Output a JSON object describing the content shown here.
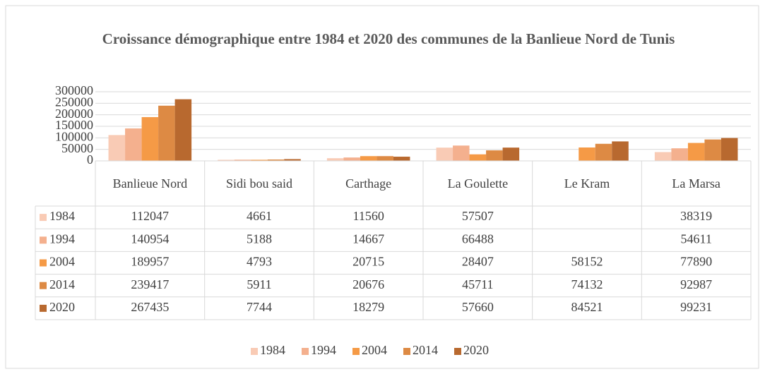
{
  "chart_data": {
    "type": "bar",
    "title": "Croissance démographique  entre 1984 et 2020 des communes de la Banlieue Nord de Tunis",
    "categories": [
      "Banlieue Nord",
      "Sidi bou said",
      "Carthage",
      "La Goulette",
      "Le Kram",
      "La Marsa"
    ],
    "series": [
      {
        "name": "1984",
        "color": "#f9cbb5",
        "values": [
          112047,
          4661,
          11560,
          57507,
          null,
          38319
        ]
      },
      {
        "name": "1994",
        "color": "#f4b08e",
        "values": [
          140954,
          5188,
          14667,
          66488,
          null,
          54611
        ]
      },
      {
        "name": "2004",
        "color": "#f59a46",
        "values": [
          189957,
          4793,
          20715,
          28407,
          58152,
          77890
        ]
      },
      {
        "name": "2014",
        "color": "#dd8a44",
        "values": [
          239417,
          5911,
          20676,
          45711,
          74132,
          92987
        ]
      },
      {
        "name": "2020",
        "color": "#b8692f",
        "values": [
          267435,
          7744,
          18279,
          57660,
          84521,
          99231
        ]
      }
    ],
    "ylim": [
      0,
      300000
    ],
    "yticks": [
      0,
      50000,
      100000,
      150000,
      200000,
      250000,
      300000
    ],
    "grid": true,
    "legend": "bottom",
    "data_table": true
  }
}
